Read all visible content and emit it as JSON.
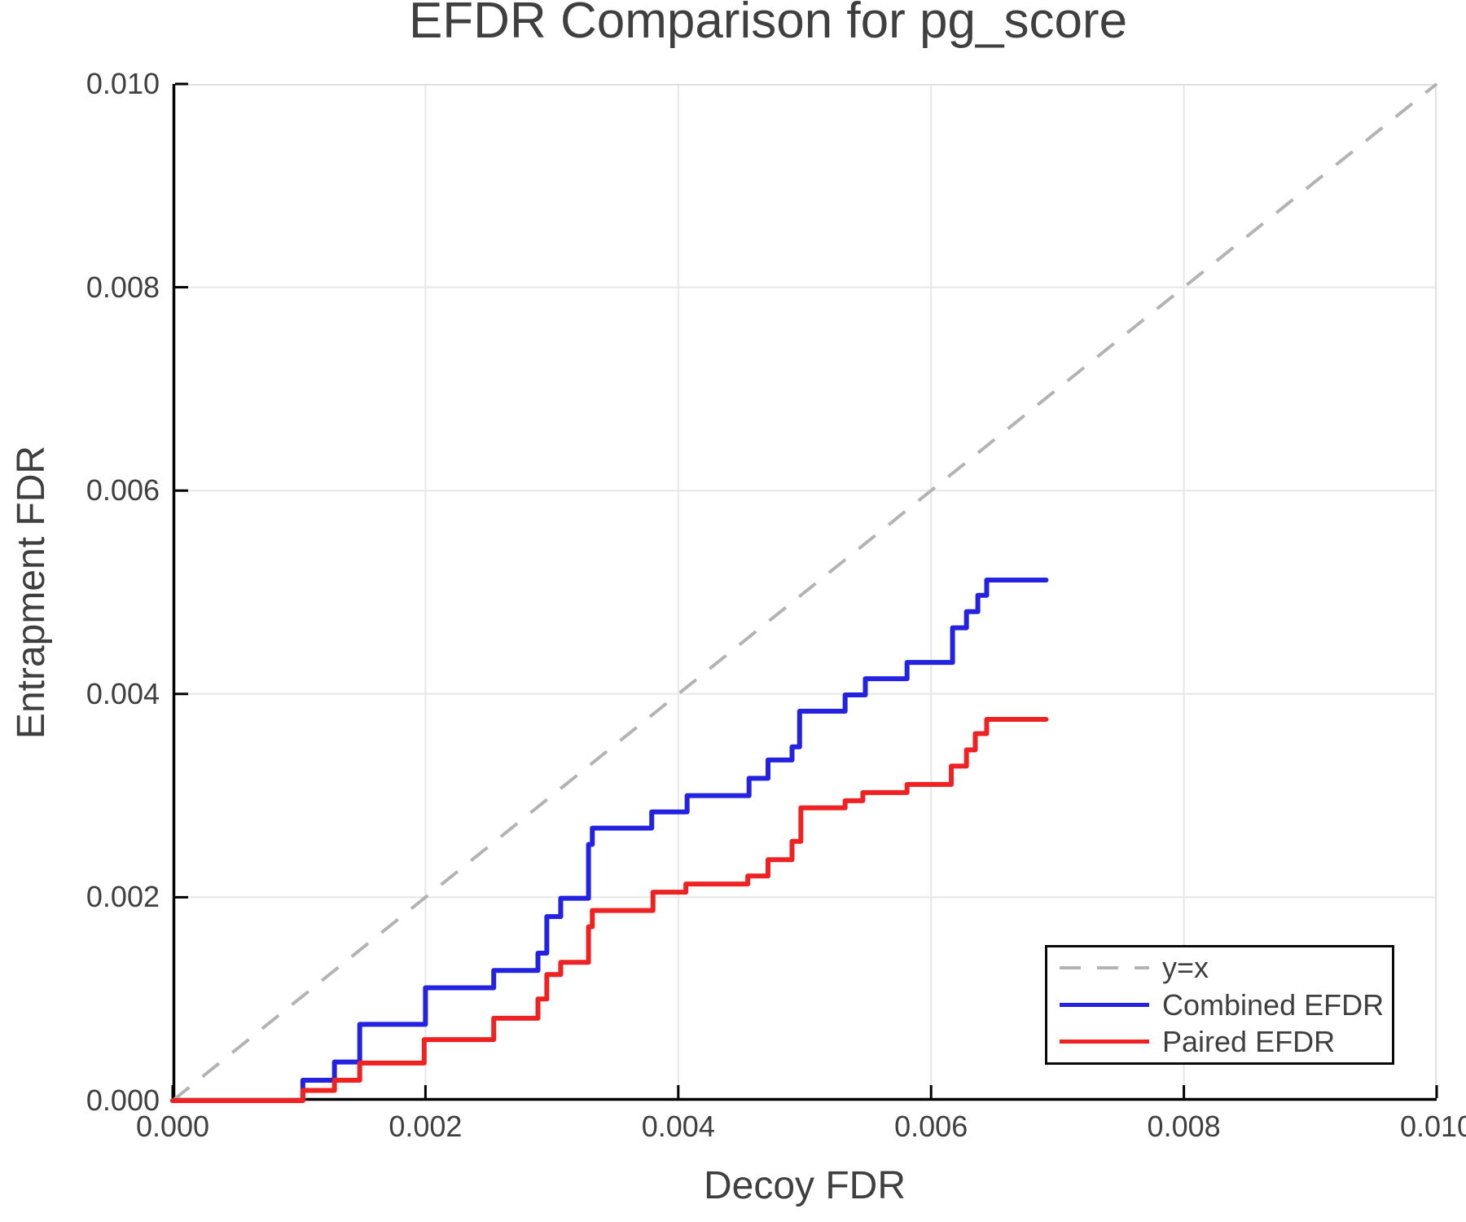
{
  "figure": {
    "background": "#ffffff",
    "text_color": "#3f3f3f"
  },
  "chart_data": {
    "type": "line",
    "title": "EFDR Comparison for pg_score",
    "xlabel": "Decoy FDR",
    "ylabel": "Entrapment FDR",
    "xlim": [
      0.0,
      0.01
    ],
    "ylim": [
      0.0,
      0.01
    ],
    "x_tick_values": [
      0.0,
      0.002,
      0.004,
      0.006,
      0.008,
      0.01
    ],
    "y_tick_values": [
      0.0,
      0.002,
      0.004,
      0.006,
      0.008,
      0.01
    ],
    "x_tick_labels": [
      "0.000",
      "0.002",
      "0.004",
      "0.006",
      "0.008",
      "0.010"
    ],
    "y_tick_labels": [
      "0.000",
      "0.002",
      "0.004",
      "0.006",
      "0.008",
      "0.010"
    ],
    "grid": true,
    "grid_color": "#e7e7e7",
    "frame_color": "#e0e0e0",
    "spine_color": "#000000",
    "legend_position": "lower right",
    "series": [
      {
        "name": "y=x",
        "style": "dashed",
        "color": "#b3b3b3",
        "points": [
          [
            0.0,
            0.0
          ],
          [
            0.01,
            0.01
          ]
        ]
      },
      {
        "name": "Combined EFDR",
        "style": "step",
        "color": "#2222e0",
        "start": [
          0.0,
          0.0
        ],
        "x_end": 0.00691,
        "steps": [
          [
            0.00103,
            0.0002
          ],
          [
            0.00128,
            0.00038
          ],
          [
            0.00148,
            0.00075
          ],
          [
            0.002,
            0.00111
          ],
          [
            0.00254,
            0.00128
          ],
          [
            0.00289,
            0.00145
          ],
          [
            0.00296,
            0.00181
          ],
          [
            0.00307,
            0.00199
          ],
          [
            0.00329,
            0.00252
          ],
          [
            0.00332,
            0.00268
          ],
          [
            0.00379,
            0.00284
          ],
          [
            0.00407,
            0.003
          ],
          [
            0.00456,
            0.00317
          ],
          [
            0.00471,
            0.00335
          ],
          [
            0.0049,
            0.00348
          ],
          [
            0.00496,
            0.00383
          ],
          [
            0.00532,
            0.00399
          ],
          [
            0.00548,
            0.00415
          ],
          [
            0.00581,
            0.00431
          ],
          [
            0.00617,
            0.00465
          ],
          [
            0.00628,
            0.00481
          ],
          [
            0.00637,
            0.00497
          ],
          [
            0.00644,
            0.00512
          ]
        ]
      },
      {
        "name": "Paired EFDR",
        "style": "step",
        "color": "#ee2222",
        "start": [
          0.0,
          0.0
        ],
        "x_end": 0.00691,
        "steps": [
          [
            0.00103,
            0.0001
          ],
          [
            0.00128,
            0.0002
          ],
          [
            0.00148,
            0.00037
          ],
          [
            0.00199,
            0.0006
          ],
          [
            0.00254,
            0.00081
          ],
          [
            0.00289,
            0.001
          ],
          [
            0.00296,
            0.00124
          ],
          [
            0.00307,
            0.00136
          ],
          [
            0.00329,
            0.00171
          ],
          [
            0.00332,
            0.00187
          ],
          [
            0.0038,
            0.00205
          ],
          [
            0.00406,
            0.00213
          ],
          [
            0.00455,
            0.00221
          ],
          [
            0.00471,
            0.00237
          ],
          [
            0.0049,
            0.00255
          ],
          [
            0.00497,
            0.00288
          ],
          [
            0.00532,
            0.00295
          ],
          [
            0.00546,
            0.00303
          ],
          [
            0.00581,
            0.00311
          ],
          [
            0.00616,
            0.00329
          ],
          [
            0.00628,
            0.00345
          ],
          [
            0.00635,
            0.00361
          ],
          [
            0.00644,
            0.00375
          ]
        ]
      }
    ]
  },
  "legend": {
    "entries": [
      "y=x",
      "Combined EFDR",
      "Paired EFDR"
    ]
  }
}
